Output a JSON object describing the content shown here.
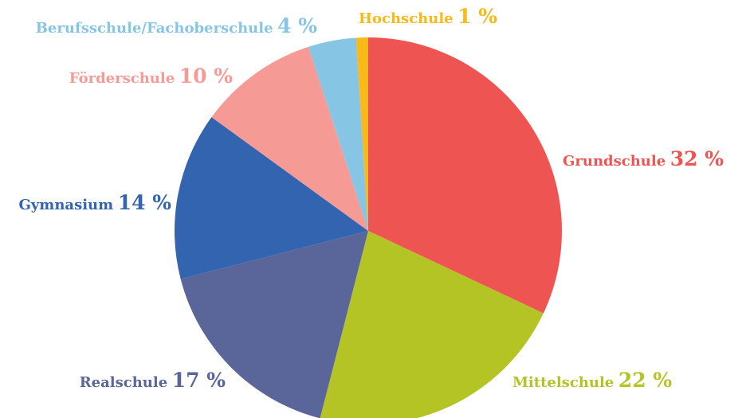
{
  "chart_data": {
    "type": "pie",
    "categories": [
      "Grundschule",
      "Mittelschule",
      "Realschule",
      "Gymnasium",
      "Förderschule",
      "Berufsschule/Fachoberschule",
      "Hochschule"
    ],
    "values": [
      32,
      22,
      17,
      14,
      10,
      4,
      1
    ],
    "value_labels": [
      "32 %",
      "22 %",
      "17 %",
      "14 %",
      "10 %",
      "4 %",
      "1 %"
    ],
    "colors": [
      "#ee5552",
      "#b3c424",
      "#5a6699",
      "#3364b0",
      "#f59a94",
      "#86c5e3",
      "#f9b919"
    ]
  }
}
